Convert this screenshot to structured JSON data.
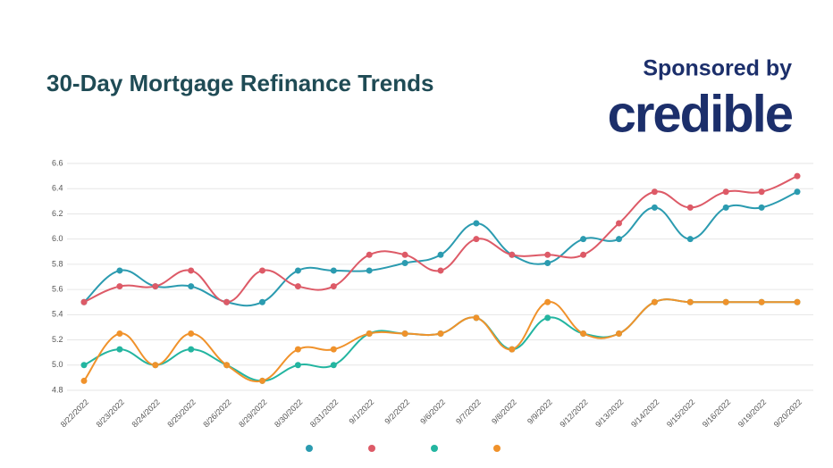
{
  "chart_data": {
    "type": "line",
    "title": "30-Day Mortgage Refinance Trends",
    "sponsor_label": "Sponsored by",
    "sponsor_name": "credible",
    "categories": [
      "8/22/2022",
      "8/23/2022",
      "8/24/2022",
      "8/25/2022",
      "8/26/2022",
      "8/29/2022",
      "8/30/2022",
      "8/31/2022",
      "9/1/2022",
      "9/2/2022",
      "9/6/2022",
      "9/7/2022",
      "9/8/2022",
      "9/9/2022",
      "9/12/2022",
      "9/13/2022",
      "9/14/2022",
      "9/15/2022",
      "9/16/2022",
      "9/19/2022",
      "9/20/2022"
    ],
    "series": [
      {
        "color": "#2b9bb0",
        "values": [
          5.5,
          5.75,
          5.625,
          5.625,
          5.5,
          5.5,
          5.75,
          5.75,
          5.75,
          5.81,
          5.875,
          6.125,
          5.875,
          5.81,
          6.0,
          6.0,
          6.25,
          6.0,
          6.25,
          6.25,
          6.375
        ]
      },
      {
        "color": "#dd5a67",
        "values": [
          5.5,
          5.625,
          5.625,
          5.75,
          5.5,
          5.75,
          5.625,
          5.625,
          5.875,
          5.875,
          5.75,
          6.0,
          5.875,
          5.875,
          5.875,
          6.125,
          6.375,
          6.25,
          6.375,
          6.375,
          6.5
        ]
      },
      {
        "color": "#23b5a0",
        "values": [
          5.0,
          5.125,
          5.0,
          5.125,
          5.0,
          4.875,
          5.0,
          5.0,
          5.25,
          5.25,
          5.25,
          5.375,
          5.125,
          5.375,
          5.25,
          5.25,
          5.5,
          5.5,
          5.5,
          5.5,
          5.5
        ]
      },
      {
        "color": "#f0922b",
        "values": [
          4.875,
          5.25,
          5.0,
          5.25,
          5.0,
          4.875,
          5.125,
          5.125,
          5.25,
          5.25,
          5.25,
          5.375,
          5.125,
          5.5,
          5.25,
          5.25,
          5.5,
          5.5,
          5.5,
          5.5,
          5.5
        ]
      }
    ],
    "ylim": [
      4.8,
      6.6
    ],
    "yticks": [
      4.8,
      {
        "value": 5.0,
        "label": "5.0"
      },
      5.2,
      5.4,
      5.6,
      5.8,
      {
        "value": 6.0,
        "label": "6.0"
      },
      6.2,
      6.4,
      6.6
    ],
    "grid": true
  }
}
